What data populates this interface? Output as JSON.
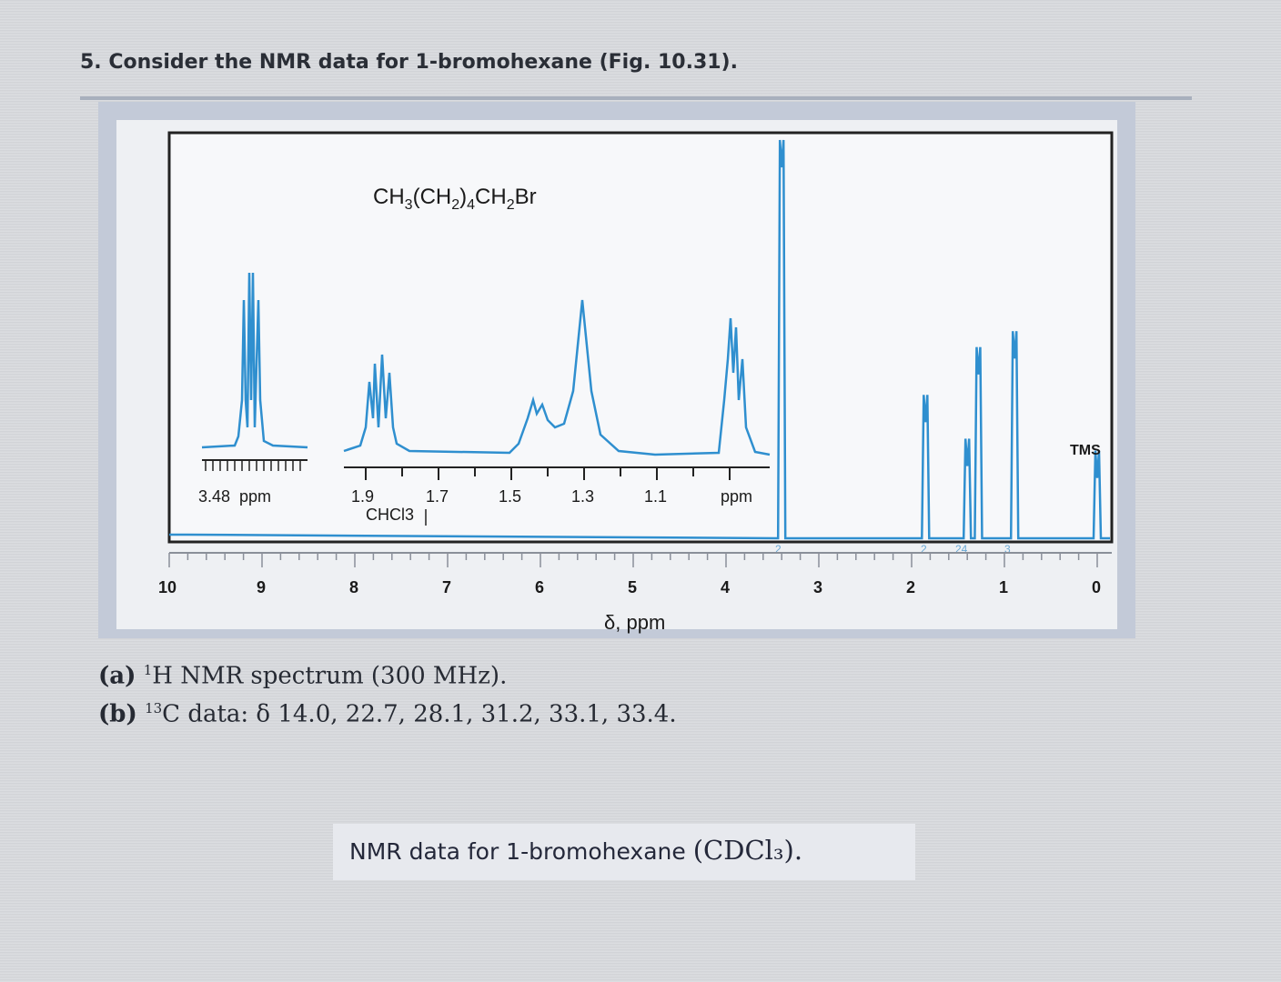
{
  "question": {
    "text": "5. Consider the NMR data for 1-bromohexane (Fig. 10.31)."
  },
  "figure": {
    "compound_formula": "CH3(CH2)4CH2Br",
    "inset_left_label": "3.48  ppm",
    "inset_ticks": [
      "1.9",
      "1.7",
      "1.5",
      "1.3",
      "1.1"
    ],
    "inset_unit": "ppm",
    "solvent_label": "CHCl3",
    "tms_label": "TMS",
    "integrations": [
      "2",
      "2",
      "24",
      "3"
    ]
  },
  "chart_data": {
    "type": "line",
    "title": "",
    "xlabel": "δ, ppm",
    "ylabel": "",
    "xlim": [
      10,
      0
    ],
    "x_ticks": [
      "10",
      "9",
      "8",
      "7",
      "6",
      "5",
      "4",
      "3",
      "2",
      "1",
      "0"
    ],
    "grid": false,
    "series": [
      {
        "name": "",
        "peaks": [
          {
            "shift": 3.4,
            "relative_height": 1.0
          },
          {
            "shift": 1.85,
            "relative_height": 0.36
          },
          {
            "shift": 1.4,
            "relative_height": 0.25
          },
          {
            "shift": 1.28,
            "relative_height": 0.48
          },
          {
            "shift": 0.89,
            "relative_height": 0.52
          },
          {
            "shift": 0.0,
            "relative_height": 0.22
          }
        ]
      }
    ]
  },
  "captions": {
    "a_prefix": "(a)",
    "a_sup": "1",
    "a_text": "H NMR spectrum (300 MHz).",
    "b_prefix": "(b)",
    "b_sup": "13",
    "b_text": "C data: δ 14.0, 22.7, 28.1, 31.2, 33.1, 33.4."
  },
  "data_caption": {
    "text": "NMR data for 1-bromohexane ",
    "math": "(CDCl₃)."
  }
}
